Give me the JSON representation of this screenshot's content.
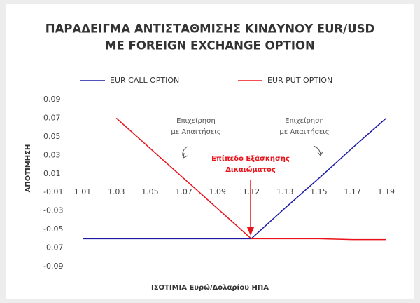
{
  "chart_data": {
    "type": "line",
    "title": [
      "ΠΑΡΑΔΕΙΓΜΑ ΑΝΤΙΣΤΑΘΜΙΣΗΣ ΚΙΝΔΥΝΟΥ EUR/USD",
      "ΜΕ  FOREIGN EXCHANGE OPTION"
    ],
    "x_label": "ΙΣΟΤΙΜΙΑ Ευρώ/Δολαρίου ΗΠΑ",
    "y_label": "ΑΠΟΤΙΜΗΣΗ",
    "categories": [
      "1.01",
      "1.03",
      "1.05",
      "1.07",
      "1.09",
      "1.12",
      "1.13",
      "1.15",
      "1.17",
      "1.19"
    ],
    "series": [
      {
        "name": "EUR CALL OPTION",
        "color": "#1a1aa6",
        "values": [
          -0.06,
          -0.06,
          -0.06,
          -0.06,
          -0.06,
          -0.06,
          -0.027,
          0.005,
          0.038,
          0.07
        ]
      },
      {
        "name": "EUR PUT OPTION",
        "color": "#e8131b",
        "values": [
          null,
          0.07,
          0.0375,
          0.005,
          -0.0275,
          -0.06,
          -0.06,
          -0.06,
          -0.061,
          -0.061
        ]
      }
    ],
    "ylim": [
      -0.09,
      0.09
    ],
    "yticks": [
      0.09,
      0.07,
      0.05,
      0.03,
      0.01,
      -0.01,
      -0.03,
      -0.05,
      -0.07,
      -0.09
    ],
    "legend": "top",
    "annotations": [
      {
        "text": [
          "Επιχείρηση",
          "με Απαιτήσεις"
        ],
        "color": "#555555"
      },
      {
        "text": [
          "Επιχείρηση",
          "με Απαιτήσεις"
        ],
        "color": "#555555"
      },
      {
        "text": [
          "Επίπεδο Εξάσκησης",
          "Δικαιώματος"
        ],
        "color": "#e8131b"
      }
    ]
  }
}
